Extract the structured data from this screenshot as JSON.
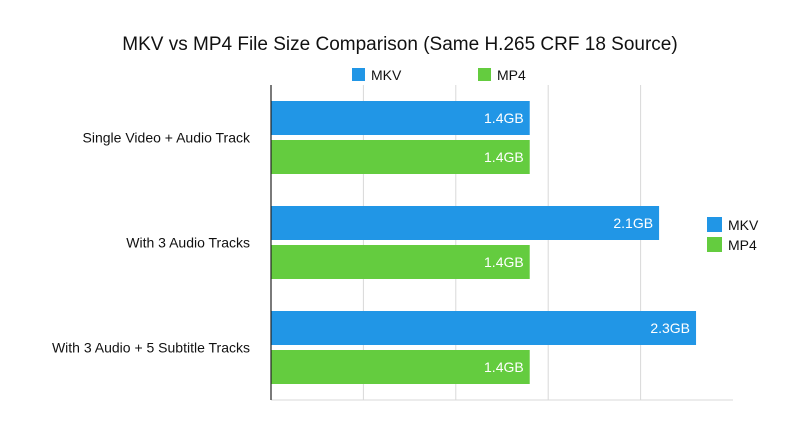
{
  "chart_data": {
    "type": "bar",
    "orientation": "horizontal",
    "title": "MKV vs MP4 File Size Comparison (Same H.265 CRF 18 Source)",
    "categories": [
      "Single Video + Audio Track",
      "With 3 Audio Tracks",
      "With 3 Audio + 5 Subtitle Tracks"
    ],
    "series": [
      {
        "name": "MKV",
        "values": [
          1.4,
          2.1,
          2.3
        ],
        "labels": [
          "1.4GB",
          "2.1GB",
          "2.3GB"
        ],
        "color": "#2196e6"
      },
      {
        "name": "MP4",
        "values": [
          1.4,
          1.4,
          1.4
        ],
        "labels": [
          "1.4GB",
          "1.4GB",
          "1.4GB"
        ],
        "color": "#64cc3f"
      }
    ],
    "xlabel": "",
    "ylabel": "",
    "xlim": [
      0,
      2.5
    ],
    "grid_step": 0.5,
    "grid": true,
    "legend": [
      "top",
      "right"
    ]
  }
}
